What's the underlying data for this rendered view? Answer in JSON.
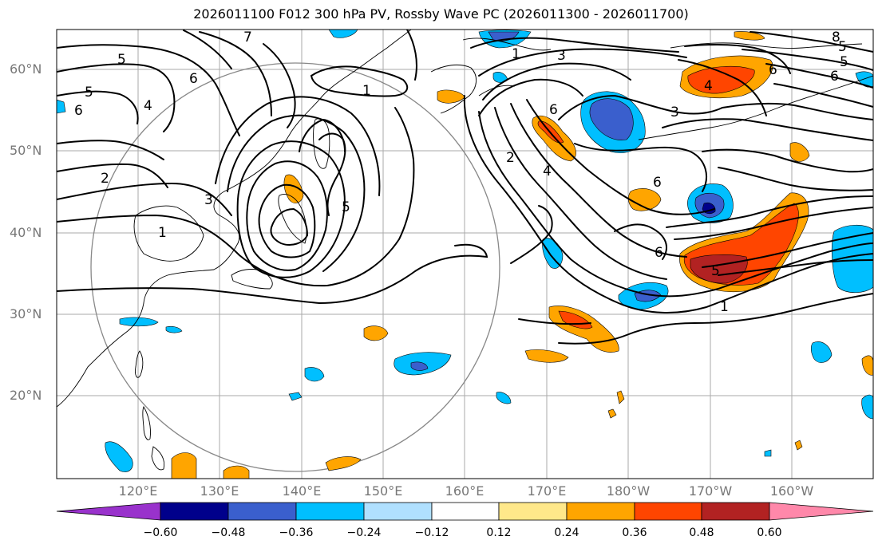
{
  "title": "2026011100 F012 300 hPa PV, Rossby Wave PC (2026011300 - 2026011700)",
  "lat_labels": [
    "60°N",
    "50°N",
    "40°N",
    "30°N",
    "20°N"
  ],
  "lon_labels": [
    "120°E",
    "130°E",
    "140°E",
    "150°E",
    "160°E",
    "170°E",
    "180°W",
    "170°W",
    "160°W"
  ],
  "colorbar": {
    "ticks": [
      "−0.60",
      "−0.48",
      "−0.36",
      "−0.24",
      "−0.12",
      "0.12",
      "0.24",
      "0.36",
      "0.48",
      "0.60"
    ],
    "colors": [
      "#9932cc",
      "#00008b",
      "#3a5fcd",
      "#00bfff",
      "#b0e0ff",
      "#ffffff",
      "#ffe88a",
      "#ffa500",
      "#ff4500",
      "#b22222",
      "#ff88aa"
    ]
  },
  "contour_labels": [
    "5",
    "5",
    "6",
    "4",
    "6",
    "2",
    "3",
    "1",
    "1",
    "5",
    "1",
    "3",
    "2",
    "4",
    "6",
    "6",
    "5",
    "4",
    "6",
    "3",
    "6",
    "6",
    "5",
    "1",
    "8",
    "7",
    "5"
  ]
}
